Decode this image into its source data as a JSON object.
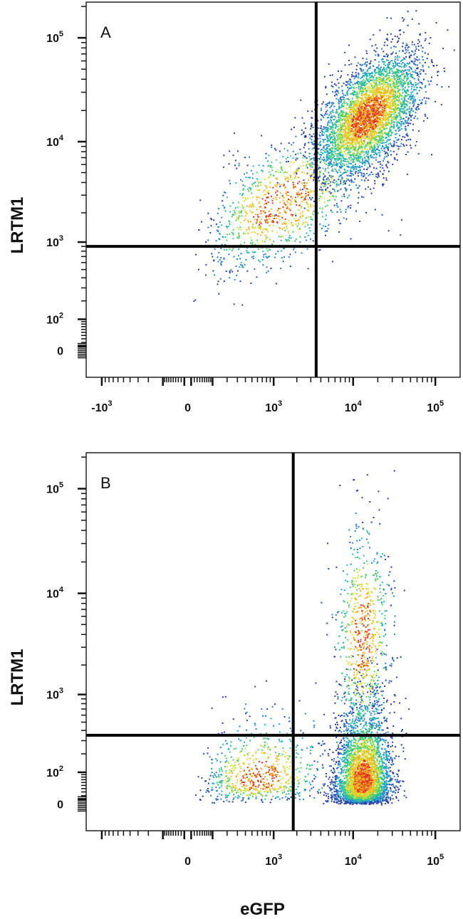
{
  "chart_data": [
    {
      "type": "scatter",
      "panel_label": "A",
      "xlabel": "",
      "ylabel": "LRTM1",
      "x_scale": "biexponential",
      "y_scale": "biexponential",
      "xlim": [
        -1600,
        200000
      ],
      "ylim": [
        -80,
        220000
      ],
      "x_ticks": [
        {
          "value": -1000,
          "label": "-10",
          "sup": "3"
        },
        {
          "value": 0,
          "label": "0",
          "sup": ""
        },
        {
          "value": 1000,
          "label": "10",
          "sup": "3"
        },
        {
          "value": 10000,
          "label": "10",
          "sup": "4"
        },
        {
          "value": 100000,
          "label": "10",
          "sup": "5"
        }
      ],
      "y_ticks": [
        {
          "value": 0,
          "label": "0",
          "sup": ""
        },
        {
          "value": 100,
          "label": "10",
          "sup": "2"
        },
        {
          "value": 1000,
          "label": "10",
          "sup": "3"
        },
        {
          "value": 10000,
          "label": "10",
          "sup": "4"
        },
        {
          "value": 100000,
          "label": "10",
          "sup": "5"
        }
      ],
      "quadrant_gate": {
        "x": 3500,
        "y": 900
      },
      "populations": [
        {
          "name": "",
          "center": [
            15000,
            18000
          ],
          "spread": [
            0.32,
            0.3
          ],
          "weight": 0.8
        },
        {
          "name": "",
          "center": [
            1200,
            2500
          ],
          "spread": [
            0.55,
            0.35
          ],
          "weight": 0.2
        }
      ],
      "density_colors": [
        "#2a3fa6",
        "#2b7fd0",
        "#1fb5b9",
        "#4fcf6a",
        "#d6e23a",
        "#f2b51f",
        "#e2361f"
      ]
    },
    {
      "type": "scatter",
      "panel_label": "B",
      "xlabel": "eGFP",
      "ylabel": "LRTM1",
      "x_scale": "biexponential",
      "y_scale": "biexponential",
      "xlim": [
        -1600,
        200000
      ],
      "ylim": [
        -80,
        220000
      ],
      "x_ticks": [
        {
          "value": 0,
          "label": "0",
          "sup": ""
        },
        {
          "value": 1000,
          "label": "10",
          "sup": "3"
        },
        {
          "value": 10000,
          "label": "10",
          "sup": "4"
        },
        {
          "value": 100000,
          "label": "10",
          "sup": "5"
        }
      ],
      "y_ticks": [
        {
          "value": 0,
          "label": "0",
          "sup": ""
        },
        {
          "value": 100,
          "label": "10",
          "sup": "2"
        },
        {
          "value": 1000,
          "label": "10",
          "sup": "3"
        },
        {
          "value": 10000,
          "label": "10",
          "sup": "4"
        },
        {
          "value": 100000,
          "label": "10",
          "sup": "5"
        }
      ],
      "quadrant_gate": {
        "x": 1800,
        "y": 350
      },
      "populations": [
        {
          "name": "",
          "center": [
            13000,
            70
          ],
          "spread": [
            0.17,
            0.55
          ],
          "weight": 0.72
        },
        {
          "name": "",
          "center": [
            13000,
            4000
          ],
          "spread": [
            0.17,
            0.55
          ],
          "weight": 0.14
        },
        {
          "name": "",
          "center": [
            600,
            80
          ],
          "spread": [
            0.45,
            0.45
          ],
          "weight": 0.14
        }
      ],
      "density_colors": [
        "#2a3fa6",
        "#2b7fd0",
        "#1fb5b9",
        "#4fcf6a",
        "#d6e23a",
        "#f2b51f",
        "#e2361f"
      ]
    }
  ]
}
